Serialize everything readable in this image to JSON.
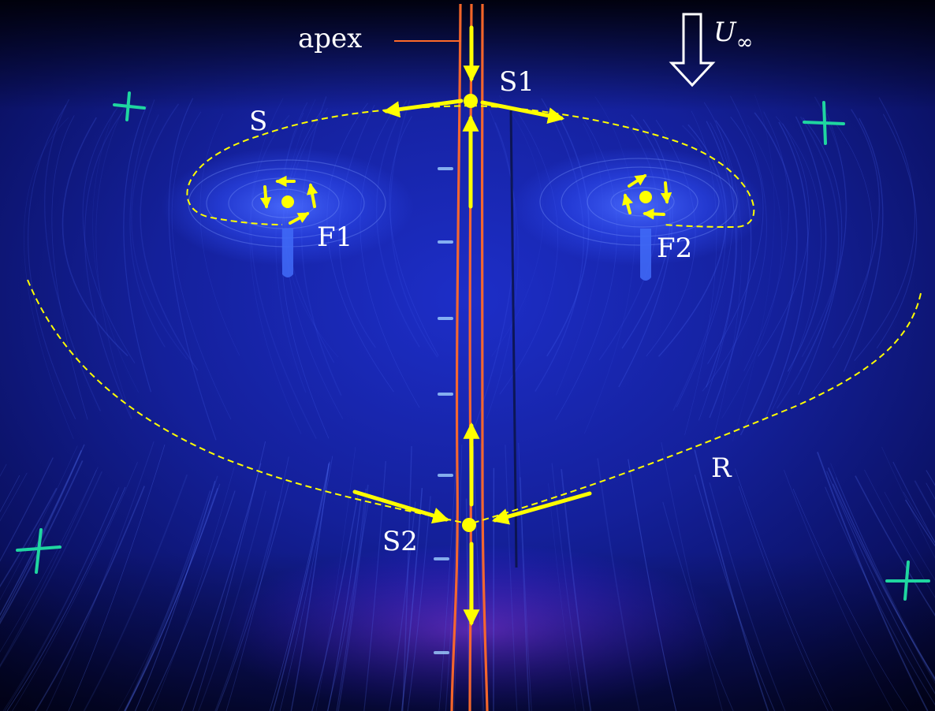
{
  "labels": {
    "apex": "apex",
    "freestream_symbol": "U",
    "freestream_subscript": "∞",
    "s1": "S1",
    "s2": "S2",
    "f1": "F1",
    "f2": "F2",
    "separation_line": "S",
    "reattachment_line": "R"
  },
  "colors": {
    "annotation_yellow": "#ffff00",
    "apex_line_orange": "#ff6a2a",
    "fluorescent_blue": "#2a3cff",
    "marker_green": "#1fd6a0",
    "background": "#000010"
  },
  "icons": {
    "freestream_arrow": "hollow-down-arrow-icon",
    "registration_mark": "green-cross-icon",
    "critical_point": "yellow-dot-icon"
  }
}
